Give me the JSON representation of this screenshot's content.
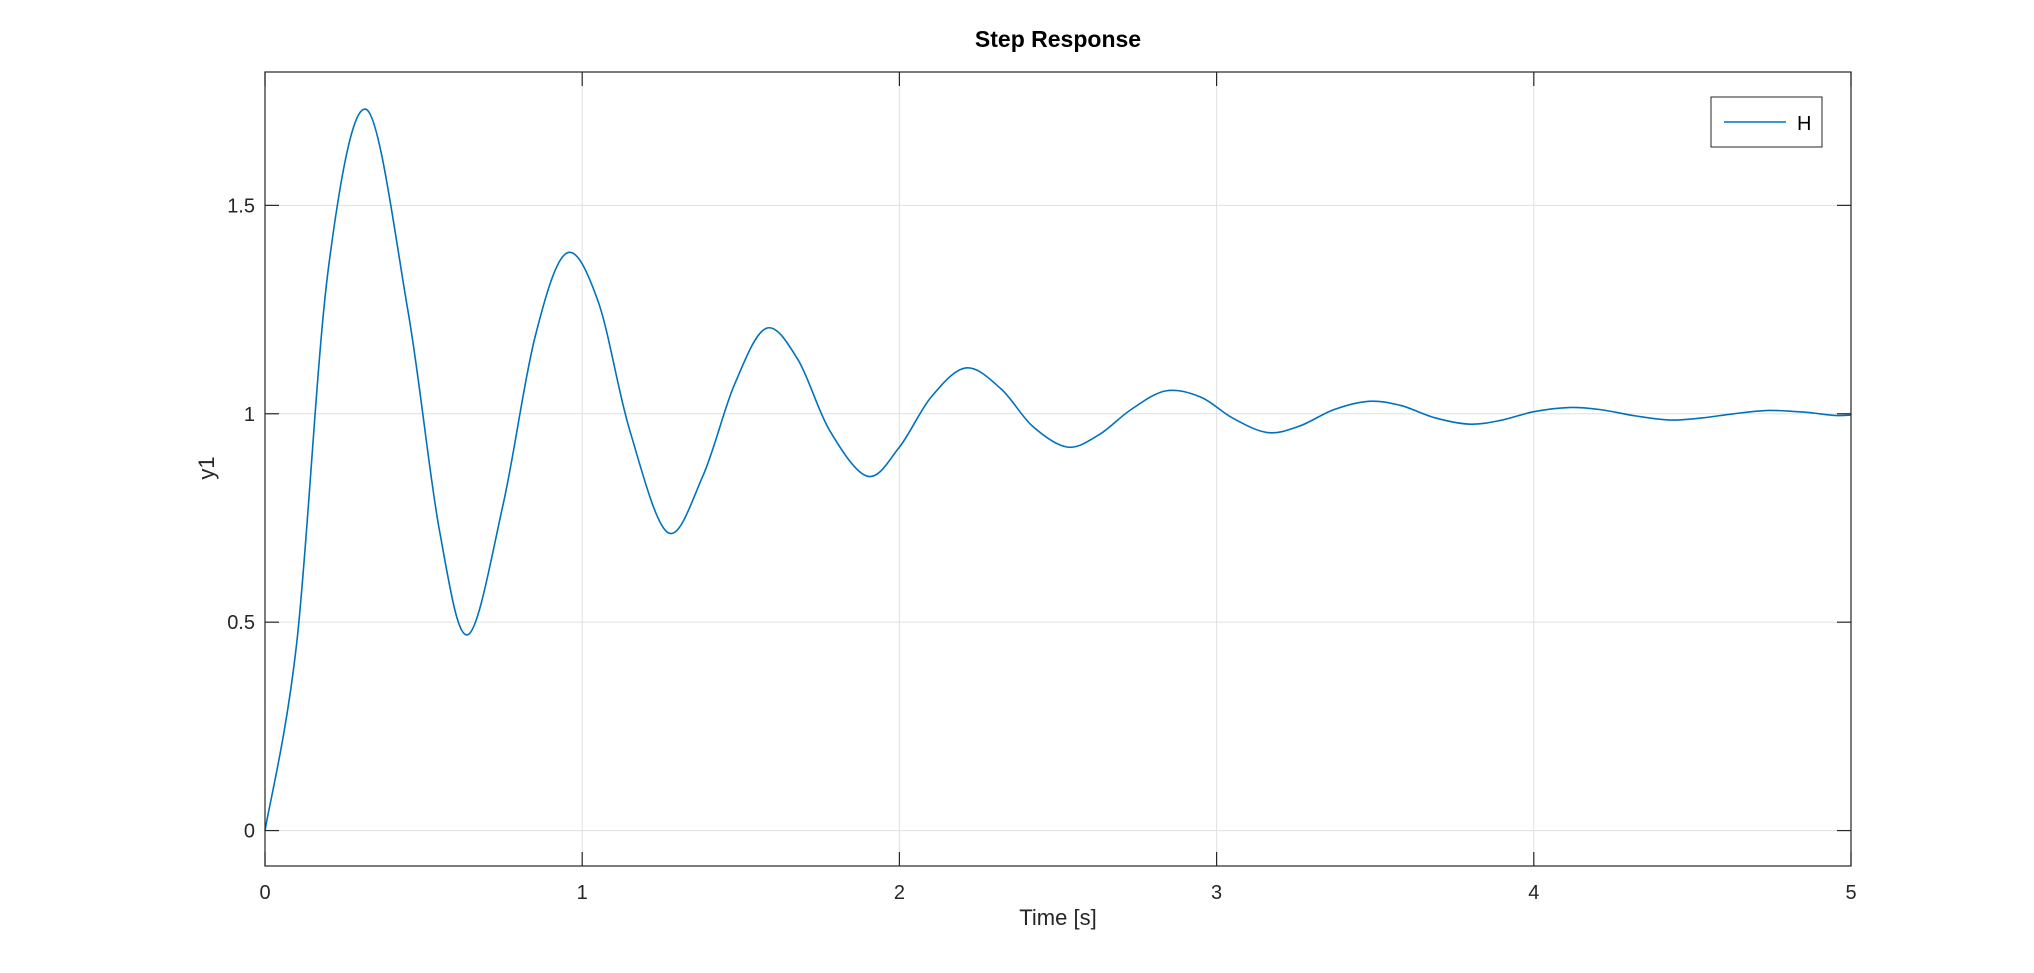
{
  "chart_data": {
    "type": "line",
    "title": "Step Response",
    "xlabel": "Time [s]",
    "ylabel": "y1",
    "xlim": [
      0,
      5
    ],
    "ylim": [
      -0.085,
      1.82
    ],
    "xticks": [
      0,
      1,
      2,
      3,
      4,
      5
    ],
    "xtick_labels": [
      "0",
      "1",
      "2",
      "3",
      "4",
      "5"
    ],
    "yticks": [
      0,
      0.5,
      1,
      1.5
    ],
    "ytick_labels": [
      "0",
      "0.5",
      "1",
      "1.5"
    ],
    "grid": true,
    "legend_position": "top-right",
    "series": [
      {
        "name": "H",
        "color": "#0072bd",
        "x": [
          0,
          0.1,
          0.2,
          0.32,
          0.45,
          0.55,
          0.64,
          0.75,
          0.85,
          0.95,
          1.05,
          1.15,
          1.27,
          1.38,
          1.48,
          1.58,
          1.68,
          1.78,
          1.9,
          2.0,
          2.1,
          2.21,
          2.32,
          2.42,
          2.53,
          2.63,
          2.73,
          2.84,
          2.95,
          3.05,
          3.16,
          3.26,
          3.37,
          3.48,
          3.58,
          3.69,
          3.8,
          3.9,
          4.0,
          4.11,
          4.21,
          4.32,
          4.43,
          4.53,
          4.63,
          4.74,
          4.85,
          4.95,
          5.0
        ],
        "y": [
          0,
          0.45,
          1.35,
          1.73,
          1.25,
          0.72,
          0.47,
          0.78,
          1.18,
          1.385,
          1.27,
          0.96,
          0.715,
          0.85,
          1.07,
          1.205,
          1.13,
          0.96,
          0.85,
          0.92,
          1.04,
          1.11,
          1.06,
          0.97,
          0.92,
          0.95,
          1.01,
          1.055,
          1.04,
          0.99,
          0.955,
          0.97,
          1.01,
          1.03,
          1.02,
          0.99,
          0.975,
          0.985,
          1.005,
          1.015,
          1.01,
          0.995,
          0.985,
          0.99,
          1.0,
          1.008,
          1.004,
          0.996,
          0.997
        ]
      }
    ]
  }
}
